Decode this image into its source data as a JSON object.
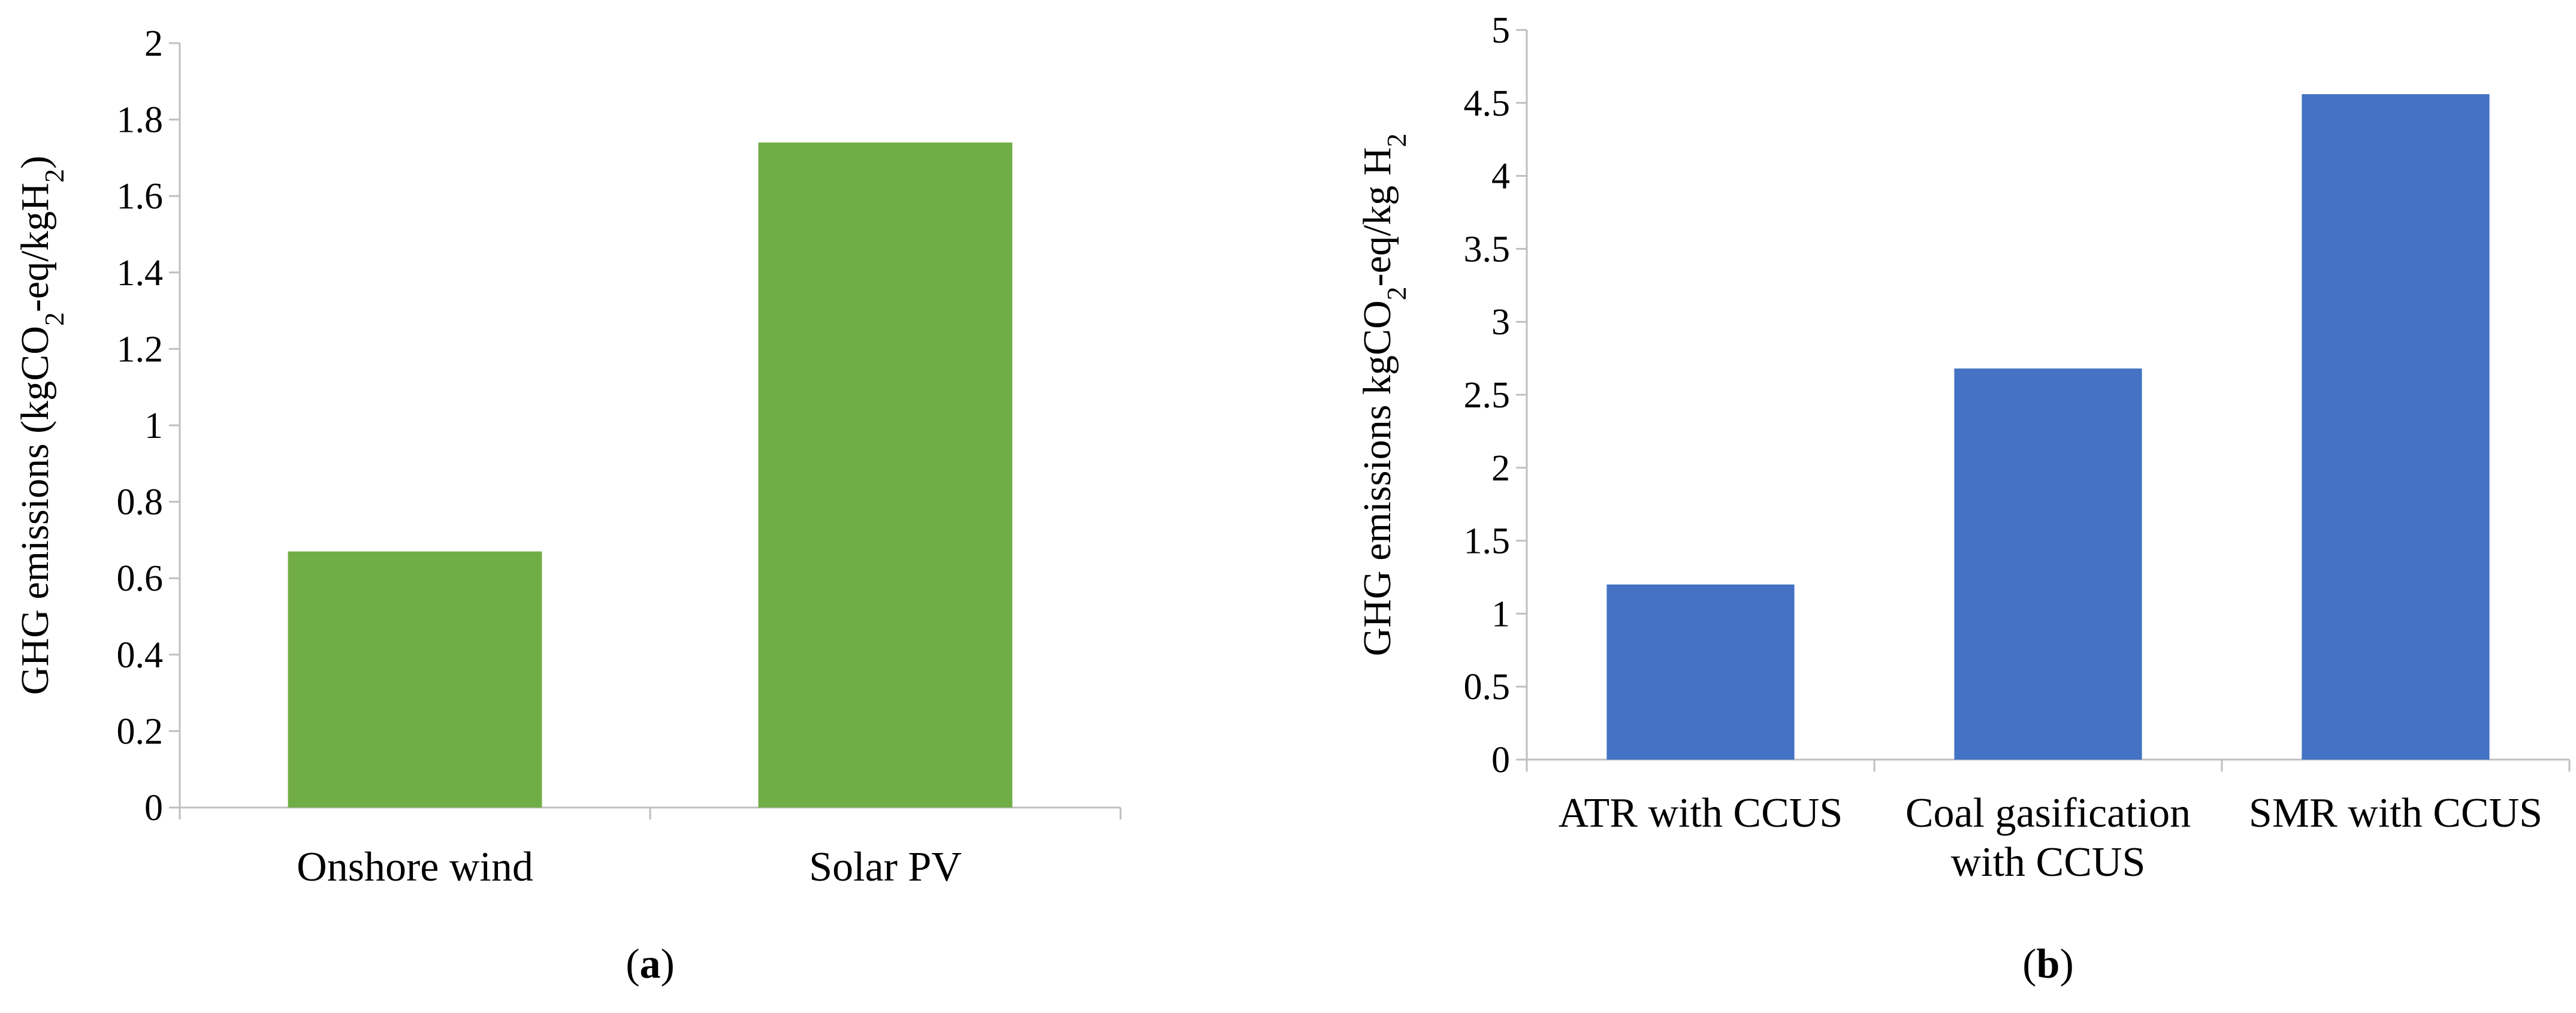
{
  "chart_data": [
    {
      "type": "bar",
      "panel_label": {
        "open": "(",
        "letter": "a",
        "close": ")"
      },
      "categories": [
        [
          "Onshore wind"
        ],
        [
          "Solar PV"
        ]
      ],
      "values": [
        0.67,
        1.74
      ],
      "ylim": [
        0,
        2
      ],
      "yticks": [
        0,
        0.2,
        0.4,
        0.6,
        0.8,
        1,
        1.2,
        1.4,
        1.6,
        1.8,
        2
      ],
      "ylabel": {
        "pre": "GHG emissions (kgCO",
        "sub1": "2",
        "mid": "-eq/kgH",
        "sub2": "2",
        "post": ")"
      },
      "xlabel": "",
      "grid": false,
      "color": "#70AD47"
    },
    {
      "type": "bar",
      "panel_label": {
        "open": "(",
        "letter": "b",
        "close": ")"
      },
      "categories": [
        [
          "ATR with CCUS"
        ],
        [
          "Coal gasification",
          "with CCUS"
        ],
        [
          "SMR with CCUS"
        ]
      ],
      "values": [
        1.2,
        2.68,
        4.56
      ],
      "ylim": [
        0,
        5
      ],
      "yticks": [
        0,
        0.5,
        1,
        1.5,
        2,
        2.5,
        3,
        3.5,
        4,
        4.5,
        5
      ],
      "ylabel": {
        "pre": "GHG emissions kgCO",
        "sub1": "2",
        "mid": "-eq/kg H",
        "sub2": "2",
        "post": ""
      },
      "xlabel": "",
      "grid": false,
      "color": "#4472C4"
    }
  ]
}
